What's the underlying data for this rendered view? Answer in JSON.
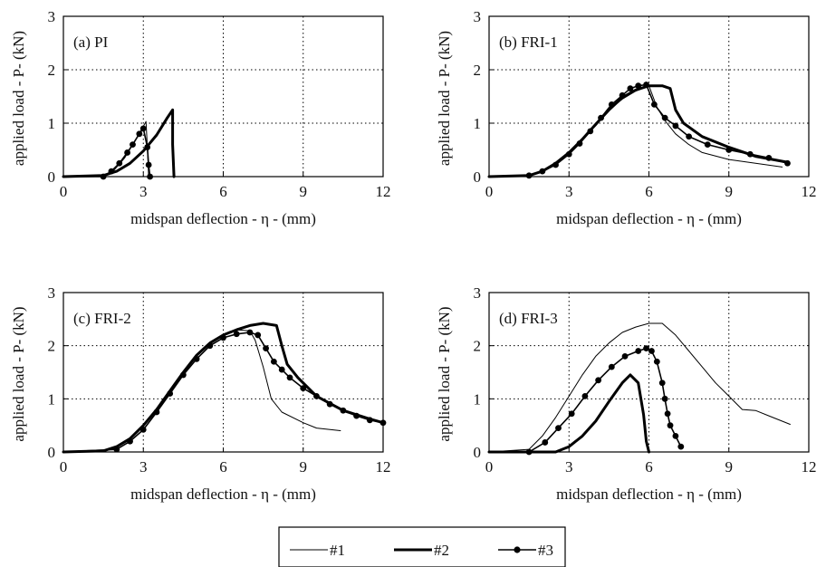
{
  "figure": {
    "legend": {
      "placement": "bottom-center",
      "entries": [
        {
          "key": "s1",
          "label": "#1",
          "style": "thin"
        },
        {
          "key": "s2",
          "label": "#2",
          "style": "thick"
        },
        {
          "key": "s3",
          "label": "#3",
          "style": "dot"
        }
      ]
    }
  },
  "chart_data": [
    {
      "type": "line",
      "id": "pi",
      "panel_label": "(a) PI",
      "xlabel": "midspan deflection - η - (mm)",
      "ylabel": "applied load - P- (kN)",
      "xlim": [
        0,
        12
      ],
      "ylim": [
        0,
        3
      ],
      "xticks": [
        "0",
        "3",
        "6",
        "9",
        "12"
      ],
      "yticks": [
        "0",
        "1",
        "2",
        "3"
      ],
      "grid": "dotted",
      "series": [
        {
          "name": "#1",
          "style": "thin",
          "x": [
            0,
            1.5,
            1.9,
            2.3,
            2.7,
            3.1,
            3.15,
            3.2
          ],
          "y": [
            0,
            0.02,
            0.12,
            0.35,
            0.68,
            1.03,
            0.55,
            0
          ]
        },
        {
          "name": "#2",
          "style": "thick",
          "x": [
            0,
            1.5,
            2,
            2.5,
            3,
            3.5,
            3.9,
            4.1,
            4.1,
            4.15
          ],
          "y": [
            0,
            0.02,
            0.1,
            0.25,
            0.48,
            0.78,
            1.1,
            1.25,
            0.6,
            0
          ]
        },
        {
          "name": "#3",
          "style": "dot",
          "x": [
            0,
            1.5,
            1.8,
            2.1,
            2.4,
            2.6,
            2.85,
            3.0,
            3.15,
            3.2,
            3.25
          ],
          "y": [
            0,
            0,
            0.1,
            0.25,
            0.45,
            0.6,
            0.8,
            0.9,
            0.55,
            0.22,
            0
          ]
        }
      ]
    },
    {
      "type": "line",
      "id": "fri1",
      "panel_label": "(b) FRI-1",
      "xlabel": "midspan deflection - η - (mm)",
      "ylabel": "applied load - P- (kN)",
      "xlim": [
        0,
        12
      ],
      "ylim": [
        0,
        3
      ],
      "xticks": [
        "0",
        "3",
        "6",
        "9",
        "12"
      ],
      "yticks": [
        "0",
        "1",
        "2",
        "3"
      ],
      "grid": "dotted",
      "series": [
        {
          "name": "#1",
          "style": "thin",
          "x": [
            0,
            1.5,
            2,
            2.5,
            3,
            3.5,
            4,
            4.5,
            5,
            5.5,
            6,
            6.3,
            6.6,
            7,
            7.5,
            8,
            9,
            10,
            11
          ],
          "y": [
            0,
            0.02,
            0.1,
            0.25,
            0.45,
            0.7,
            0.95,
            1.25,
            1.45,
            1.6,
            1.7,
            1.3,
            1.05,
            0.8,
            0.6,
            0.45,
            0.32,
            0.25,
            0.18
          ]
        },
        {
          "name": "#2",
          "style": "thick",
          "x": [
            0,
            1.5,
            2,
            2.5,
            3,
            3.5,
            4,
            4.5,
            5,
            5.5,
            6,
            6.5,
            6.8,
            7,
            7.3,
            8,
            9,
            10,
            11.2
          ],
          "y": [
            0,
            0.02,
            0.1,
            0.25,
            0.45,
            0.7,
            0.98,
            1.25,
            1.48,
            1.62,
            1.7,
            1.7,
            1.65,
            1.25,
            1.0,
            0.75,
            0.55,
            0.38,
            0.27
          ]
        },
        {
          "name": "#3",
          "style": "dot",
          "x": [
            0,
            1.5,
            2,
            2.5,
            3,
            3.4,
            3.8,
            4.2,
            4.6,
            5,
            5.3,
            5.6,
            5.9,
            6.2,
            6.6,
            7.0,
            7.5,
            8.2,
            9,
            9.8,
            10.5,
            11.2
          ],
          "y": [
            0,
            0.02,
            0.1,
            0.22,
            0.42,
            0.62,
            0.85,
            1.1,
            1.35,
            1.52,
            1.65,
            1.7,
            1.72,
            1.35,
            1.1,
            0.95,
            0.75,
            0.6,
            0.5,
            0.42,
            0.35,
            0.25
          ]
        }
      ]
    },
    {
      "type": "line",
      "id": "fri2",
      "panel_label": "(c) FRI-2",
      "xlabel": "midspan deflection - η - (mm)",
      "ylabel": "applied load - P- (kN)",
      "xlim": [
        0,
        12
      ],
      "ylim": [
        0,
        3
      ],
      "xticks": [
        "0",
        "3",
        "6",
        "9",
        "12"
      ],
      "yticks": [
        "0",
        "1",
        "2",
        "3"
      ],
      "grid": "dotted",
      "series": [
        {
          "name": "#1",
          "style": "thin",
          "x": [
            0,
            1.5,
            2,
            2.5,
            3,
            3.5,
            4,
            4.5,
            5,
            5.5,
            6,
            6.5,
            7,
            7.2,
            7.5,
            7.8,
            8.2,
            9,
            9.5,
            10.4
          ],
          "y": [
            0,
            0.02,
            0.1,
            0.25,
            0.48,
            0.8,
            1.15,
            1.5,
            1.8,
            2.05,
            2.2,
            2.3,
            2.28,
            2.1,
            1.6,
            1.0,
            0.75,
            0.55,
            0.45,
            0.4
          ]
        },
        {
          "name": "#2",
          "style": "thick",
          "x": [
            0,
            1.5,
            2,
            2.5,
            3,
            3.5,
            4,
            4.5,
            5,
            5.5,
            6,
            6.5,
            7,
            7.5,
            8,
            8.2,
            8.4,
            8.8,
            9.5,
            10.5,
            11.5,
            12
          ],
          "y": [
            0,
            0.02,
            0.1,
            0.25,
            0.5,
            0.8,
            1.15,
            1.5,
            1.82,
            2.05,
            2.2,
            2.3,
            2.38,
            2.42,
            2.38,
            2.0,
            1.65,
            1.4,
            1.05,
            0.78,
            0.62,
            0.55
          ]
        },
        {
          "name": "#3",
          "style": "dot",
          "x": [
            0,
            2,
            2.5,
            3,
            3.5,
            4,
            4.5,
            5,
            5.5,
            6,
            6.5,
            7,
            7.3,
            7.6,
            7.9,
            8.2,
            8.5,
            9,
            9.5,
            10,
            10.5,
            11,
            11.5,
            12
          ],
          "y": [
            0,
            0.05,
            0.2,
            0.42,
            0.75,
            1.1,
            1.45,
            1.75,
            2.0,
            2.15,
            2.22,
            2.25,
            2.2,
            1.95,
            1.7,
            1.55,
            1.4,
            1.2,
            1.05,
            0.9,
            0.78,
            0.68,
            0.6,
            0.55
          ]
        }
      ]
    },
    {
      "type": "line",
      "id": "fri3",
      "panel_label": "(d) FRI-3",
      "xlabel": "midspan deflection - η - (mm)",
      "ylabel": "applied load - P- (kN)",
      "xlim": [
        0,
        12
      ],
      "ylim": [
        0,
        3
      ],
      "xticks": [
        "0",
        "3",
        "6",
        "9",
        "12"
      ],
      "yticks": [
        "0",
        "1",
        "2",
        "3"
      ],
      "grid": "dotted",
      "series": [
        {
          "name": "#1",
          "style": "thin",
          "x": [
            0,
            1.5,
            2,
            2.5,
            3,
            3.5,
            4,
            4.5,
            5,
            5.5,
            6,
            6.5,
            7,
            7.5,
            8,
            8.5,
            9,
            9.5,
            10,
            10.5,
            11.3
          ],
          "y": [
            0,
            0.05,
            0.3,
            0.65,
            1.05,
            1.45,
            1.8,
            2.05,
            2.25,
            2.35,
            2.42,
            2.42,
            2.2,
            1.9,
            1.6,
            1.3,
            1.05,
            0.8,
            0.78,
            0.68,
            0.52
          ]
        },
        {
          "name": "#2",
          "style": "thick",
          "x": [
            0,
            2.5,
            3,
            3.5,
            4,
            4.5,
            5,
            5.3,
            5.6,
            5.8,
            5.9,
            6.0
          ],
          "y": [
            0,
            0,
            0.1,
            0.3,
            0.58,
            0.95,
            1.3,
            1.45,
            1.3,
            0.7,
            0.2,
            0
          ]
        },
        {
          "name": "#3",
          "style": "dot",
          "x": [
            0,
            1.5,
            2.1,
            2.6,
            3.1,
            3.6,
            4.1,
            4.6,
            5.1,
            5.6,
            5.9,
            6.1,
            6.3,
            6.5,
            6.6,
            6.7,
            6.8,
            7.0,
            7.2
          ],
          "y": [
            0,
            0,
            0.18,
            0.45,
            0.72,
            1.05,
            1.35,
            1.6,
            1.8,
            1.9,
            1.95,
            1.9,
            1.7,
            1.3,
            1.0,
            0.72,
            0.5,
            0.3,
            0.1
          ]
        }
      ]
    }
  ]
}
